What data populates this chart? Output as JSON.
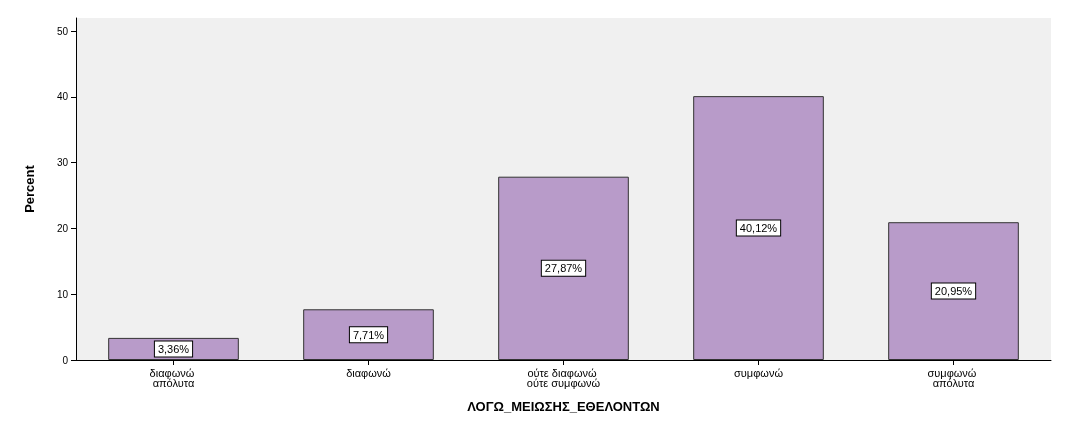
{
  "chart_data": {
    "type": "bar",
    "xlabel": "ΛΟΓΩ_ΜΕΙΩΣΗΣ_ΕΘΕΛΟΝΤΩΝ",
    "ylabel": "Percent",
    "categories": [
      "διαφωνώ απόλυτα",
      "διαφωνώ",
      "ούτε διαφωνώ ούτε συμφωνώ",
      "συμφωνώ",
      "συμφωνώ απόλυτα"
    ],
    "values": [
      3.36,
      7.71,
      27.87,
      40.12,
      20.95
    ],
    "value_labels": [
      "3,36%",
      "7,71%",
      "27,87%",
      "40,12%",
      "20,95%"
    ],
    "color": "#b89bc9",
    "ylim": [
      0,
      52
    ],
    "yticks": [
      0,
      10,
      20,
      30,
      40,
      50
    ],
    "grid": false
  }
}
